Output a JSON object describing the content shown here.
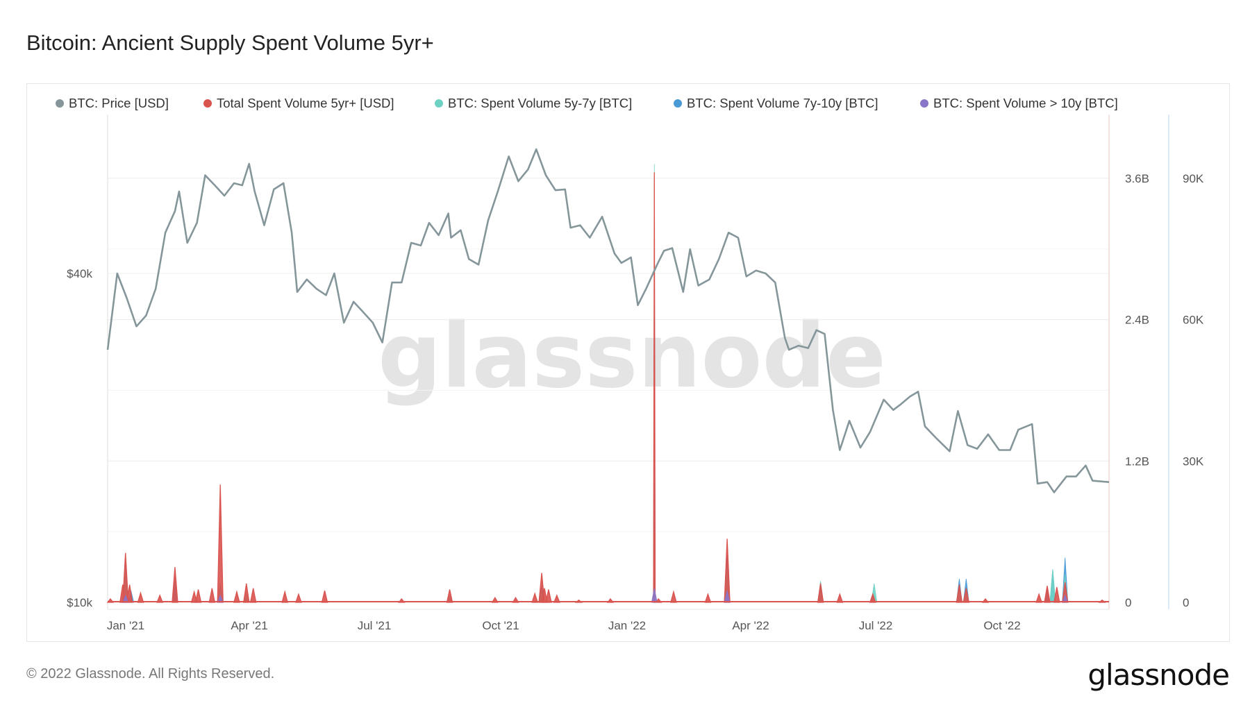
{
  "title": "Bitcoin: Ancient Supply Spent Volume 5yr+",
  "footer": {
    "copyright": "© 2022 Glassnode. All Rights Reserved.",
    "logo": "glassnode"
  },
  "watermark": "glassnode",
  "colors": {
    "price": "#85969a",
    "total_usd": "#d9534f",
    "v5_7": "#6fd1c4",
    "v7_10": "#4a9ad6",
    "v10": "#8a76c9"
  },
  "chart_data": {
    "type": "line",
    "title": "Bitcoin: Ancient Supply Spent Volume 5yr+",
    "x_range": [
      "2021-01-01",
      "2022-12-31"
    ],
    "x_ticks": [
      {
        "date": "2021-01-01",
        "label": "Jan '21"
      },
      {
        "date": "2021-04-01",
        "label": "Apr '21"
      },
      {
        "date": "2021-07-01",
        "label": "Jul '21"
      },
      {
        "date": "2021-10-01",
        "label": "Oct '21"
      },
      {
        "date": "2022-01-01",
        "label": "Jan '22"
      },
      {
        "date": "2022-04-01",
        "label": "Apr '22"
      },
      {
        "date": "2022-07-01",
        "label": "Jul '22"
      },
      {
        "date": "2022-10-01",
        "label": "Oct '22"
      }
    ],
    "y_left": {
      "scale": "log",
      "ticks": [
        {
          "value": 10000,
          "label": "$10k"
        },
        {
          "value": 40000,
          "label": "$40k"
        }
      ]
    },
    "y_right_usd": {
      "range": [
        0,
        4200000000
      ],
      "ticks": [
        {
          "value": 0,
          "label": "0"
        },
        {
          "value": 1200000000,
          "label": "1.2B"
        },
        {
          "value": 2400000000,
          "label": "2.4B"
        },
        {
          "value": 3600000000,
          "label": "3.6B"
        }
      ]
    },
    "y_right_btc": {
      "range": [
        0,
        105000
      ],
      "ticks": [
        {
          "value": 0,
          "label": "0"
        },
        {
          "value": 30000,
          "label": "30K"
        },
        {
          "value": 60000,
          "label": "60K"
        },
        {
          "value": 90000,
          "label": "90K"
        }
      ]
    },
    "grid": true,
    "legend_position": "top",
    "series": [
      {
        "name": "BTC: Price [USD]",
        "key": "price",
        "axis": "left",
        "points": [
          [
            "2021-01-01",
            29000
          ],
          [
            "2021-01-08",
            40000
          ],
          [
            "2021-01-15",
            36000
          ],
          [
            "2021-01-22",
            32000
          ],
          [
            "2021-01-29",
            33500
          ],
          [
            "2021-02-05",
            37500
          ],
          [
            "2021-02-12",
            47500
          ],
          [
            "2021-02-19",
            52000
          ],
          [
            "2021-02-22",
            56500
          ],
          [
            "2021-02-28",
            45500
          ],
          [
            "2021-03-07",
            49500
          ],
          [
            "2021-03-13",
            60500
          ],
          [
            "2021-03-20",
            58000
          ],
          [
            "2021-03-27",
            55500
          ],
          [
            "2021-04-03",
            58500
          ],
          [
            "2021-04-09",
            58000
          ],
          [
            "2021-04-14",
            63500
          ],
          [
            "2021-04-18",
            56500
          ],
          [
            "2021-04-25",
            49000
          ],
          [
            "2021-05-02",
            57000
          ],
          [
            "2021-05-09",
            58500
          ],
          [
            "2021-05-15",
            47500
          ],
          [
            "2021-05-19",
            37000
          ],
          [
            "2021-05-26",
            39000
          ],
          [
            "2021-06-02",
            37500
          ],
          [
            "2021-06-09",
            36500
          ],
          [
            "2021-06-15",
            40000
          ],
          [
            "2021-06-22",
            32500
          ],
          [
            "2021-06-29",
            35500
          ],
          [
            "2021-07-06",
            34000
          ],
          [
            "2021-07-13",
            32500
          ],
          [
            "2021-07-20",
            29900
          ],
          [
            "2021-07-27",
            38500
          ],
          [
            "2021-08-03",
            38500
          ],
          [
            "2021-08-10",
            45500
          ],
          [
            "2021-08-17",
            45000
          ],
          [
            "2021-08-23",
            49500
          ],
          [
            "2021-08-30",
            47000
          ],
          [
            "2021-09-06",
            51500
          ],
          [
            "2021-09-08",
            46500
          ],
          [
            "2021-09-15",
            48000
          ],
          [
            "2021-09-21",
            42500
          ],
          [
            "2021-09-28",
            41500
          ],
          [
            "2021-10-05",
            50000
          ],
          [
            "2021-10-12",
            56500
          ],
          [
            "2021-10-20",
            65500
          ],
          [
            "2021-10-27",
            59000
          ],
          [
            "2021-11-03",
            62000
          ],
          [
            "2021-11-09",
            67500
          ],
          [
            "2021-11-16",
            60500
          ],
          [
            "2021-11-23",
            56800
          ],
          [
            "2021-11-30",
            57000
          ],
          [
            "2021-12-04",
            48500
          ],
          [
            "2021-12-11",
            49000
          ],
          [
            "2021-12-18",
            46500
          ],
          [
            "2021-12-27",
            50800
          ],
          [
            "2022-01-05",
            43500
          ],
          [
            "2022-01-10",
            41800
          ],
          [
            "2022-01-17",
            42800
          ],
          [
            "2022-01-22",
            35000
          ],
          [
            "2022-01-28",
            37500
          ],
          [
            "2022-02-05",
            41500
          ],
          [
            "2022-02-10",
            44000
          ],
          [
            "2022-02-16",
            44500
          ],
          [
            "2022-02-24",
            37000
          ],
          [
            "2022-03-01",
            44300
          ],
          [
            "2022-03-07",
            38000
          ],
          [
            "2022-03-15",
            39000
          ],
          [
            "2022-03-22",
            42500
          ],
          [
            "2022-03-29",
            47500
          ],
          [
            "2022-04-05",
            46500
          ],
          [
            "2022-04-11",
            39500
          ],
          [
            "2022-04-18",
            40500
          ],
          [
            "2022-04-25",
            40000
          ],
          [
            "2022-05-02",
            38500
          ],
          [
            "2022-05-09",
            30500
          ],
          [
            "2022-05-12",
            29000
          ],
          [
            "2022-05-19",
            29500
          ],
          [
            "2022-05-26",
            29200
          ],
          [
            "2022-06-01",
            31500
          ],
          [
            "2022-06-07",
            31000
          ],
          [
            "2022-06-13",
            22500
          ],
          [
            "2022-06-18",
            19000
          ],
          [
            "2022-06-25",
            21500
          ],
          [
            "2022-07-03",
            19200
          ],
          [
            "2022-07-10",
            20500
          ],
          [
            "2022-07-20",
            23500
          ],
          [
            "2022-07-27",
            22500
          ],
          [
            "2022-08-01",
            23000
          ],
          [
            "2022-08-08",
            23800
          ],
          [
            "2022-08-14",
            24300
          ],
          [
            "2022-08-19",
            21000
          ],
          [
            "2022-08-27",
            20000
          ],
          [
            "2022-09-06",
            18900
          ],
          [
            "2022-09-12",
            22400
          ],
          [
            "2022-09-19",
            19400
          ],
          [
            "2022-09-26",
            19100
          ],
          [
            "2022-10-04",
            20300
          ],
          [
            "2022-10-12",
            19000
          ],
          [
            "2022-10-20",
            19000
          ],
          [
            "2022-10-26",
            20700
          ],
          [
            "2022-11-05",
            21200
          ],
          [
            "2022-11-09",
            16500
          ],
          [
            "2022-11-16",
            16600
          ],
          [
            "2022-11-21",
            15900
          ],
          [
            "2022-11-30",
            17000
          ],
          [
            "2022-12-07",
            17000
          ],
          [
            "2022-12-14",
            17800
          ],
          [
            "2022-12-19",
            16700
          ],
          [
            "2022-12-31",
            16600
          ]
        ]
      },
      {
        "name": "Total Spent Volume 5yr+ [USD]",
        "key": "total_usd",
        "axis": "usd",
        "points": [
          [
            "2021-01-03",
            30000000
          ],
          [
            "2021-01-12",
            150000000
          ],
          [
            "2021-01-14",
            420000000
          ],
          [
            "2021-01-17",
            150000000
          ],
          [
            "2021-01-25",
            80000000
          ],
          [
            "2021-02-08",
            60000000
          ],
          [
            "2021-02-19",
            300000000
          ],
          [
            "2021-03-05",
            90000000
          ],
          [
            "2021-03-08",
            110000000
          ],
          [
            "2021-03-18",
            120000000
          ],
          [
            "2021-03-24",
            1000000000
          ],
          [
            "2021-04-05",
            90000000
          ],
          [
            "2021-04-12",
            160000000
          ],
          [
            "2021-04-17",
            120000000
          ],
          [
            "2021-05-10",
            90000000
          ],
          [
            "2021-05-20",
            70000000
          ],
          [
            "2021-06-08",
            100000000
          ],
          [
            "2021-08-03",
            30000000
          ],
          [
            "2021-09-07",
            110000000
          ],
          [
            "2021-10-10",
            40000000
          ],
          [
            "2021-10-25",
            40000000
          ],
          [
            "2021-11-08",
            75000000
          ],
          [
            "2021-11-13",
            250000000
          ],
          [
            "2021-11-15",
            120000000
          ],
          [
            "2021-11-18",
            110000000
          ],
          [
            "2021-11-24",
            60000000
          ],
          [
            "2021-12-10",
            20000000
          ],
          [
            "2022-01-02",
            30000000
          ],
          [
            "2022-02-03",
            3650000000
          ],
          [
            "2022-02-06",
            30000000
          ],
          [
            "2022-02-17",
            90000000
          ],
          [
            "2022-03-14",
            70000000
          ],
          [
            "2022-03-28",
            540000000
          ],
          [
            "2022-06-04",
            160000000
          ],
          [
            "2022-06-18",
            70000000
          ],
          [
            "2022-07-12",
            70000000
          ],
          [
            "2022-09-13",
            150000000
          ],
          [
            "2022-09-18",
            120000000
          ],
          [
            "2022-10-02",
            30000000
          ],
          [
            "2022-11-10",
            70000000
          ],
          [
            "2022-11-16",
            140000000
          ],
          [
            "2022-11-23",
            130000000
          ],
          [
            "2022-11-29",
            170000000
          ],
          [
            "2022-12-26",
            20000000
          ]
        ]
      },
      {
        "name": "BTC: Spent Volume 5y-7y [BTC]",
        "key": "v5_7",
        "axis": "btc",
        "points": [
          [
            "2021-01-14",
            7000
          ],
          [
            "2021-03-24",
            2500
          ],
          [
            "2021-04-12",
            2000
          ],
          [
            "2021-09-07",
            1500
          ],
          [
            "2021-11-13",
            2000
          ],
          [
            "2022-02-03",
            93000
          ],
          [
            "2022-03-28",
            7000
          ],
          [
            "2022-06-04",
            4500
          ],
          [
            "2022-07-13",
            4000
          ],
          [
            "2022-09-13",
            3000
          ],
          [
            "2022-09-18",
            3000
          ],
          [
            "2022-11-20",
            7000
          ],
          [
            "2022-11-29",
            6000
          ]
        ]
      },
      {
        "name": "BTC: Spent Volume 7y-10y [BTC]",
        "key": "v7_10",
        "axis": "btc",
        "points": [
          [
            "2021-01-14",
            9500
          ],
          [
            "2021-01-18",
            2500
          ],
          [
            "2021-02-19",
            4500
          ],
          [
            "2021-03-24",
            4000
          ],
          [
            "2021-11-13",
            3500
          ],
          [
            "2022-02-03",
            90000
          ],
          [
            "2022-03-28",
            10000
          ],
          [
            "2022-06-04",
            3000
          ],
          [
            "2022-09-13",
            5000
          ],
          [
            "2022-09-18",
            5000
          ],
          [
            "2022-11-16",
            3000
          ],
          [
            "2022-11-20",
            7000
          ],
          [
            "2022-11-29",
            9500
          ]
        ]
      },
      {
        "name": "BTC: Spent Volume > 10y [BTC]",
        "key": "v10",
        "axis": "btc",
        "points": [
          [
            "2021-01-14",
            1500
          ],
          [
            "2021-03-24",
            1500
          ],
          [
            "2022-02-03",
            3000
          ],
          [
            "2022-03-28",
            2500
          ],
          [
            "2022-11-29",
            1500
          ]
        ]
      }
    ]
  }
}
